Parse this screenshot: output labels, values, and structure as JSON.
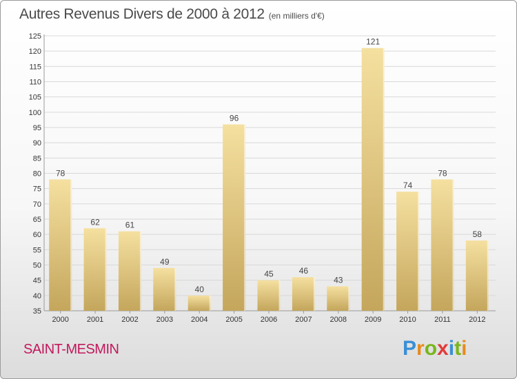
{
  "header": {
    "title": "Autres Revenus Divers de 2000 à 2012",
    "subtitle": "(en milliers d'€)"
  },
  "footer": {
    "town": "SAINT-MESMIN",
    "logo_text": "Proxiti"
  },
  "colors": {
    "bar_light": "#f5e0a0",
    "bar_dark": "#c4a65c",
    "grid": "#d8d8d8",
    "town": "#c2185b",
    "logo": [
      "#3a8fd6",
      "#e88a1c",
      "#7ab51d",
      "#e23a3a",
      "#3a8fd6",
      "#7ab51d",
      "#e88a1c"
    ]
  },
  "chart_data": {
    "type": "bar",
    "title": "Autres Revenus Divers de 2000 à 2012",
    "subtitle": "(en milliers d'€)",
    "categories": [
      "2000",
      "2001",
      "2002",
      "2003",
      "2004",
      "2005",
      "2006",
      "2007",
      "2008",
      "2009",
      "2010",
      "2011",
      "2012"
    ],
    "values": [
      78,
      62,
      61,
      49,
      40,
      96,
      45,
      46,
      43,
      121,
      74,
      78,
      58
    ],
    "ylim": [
      35,
      125
    ],
    "ytick_step": 5,
    "grid": true,
    "legend": "none",
    "xlabel": "",
    "ylabel": ""
  }
}
